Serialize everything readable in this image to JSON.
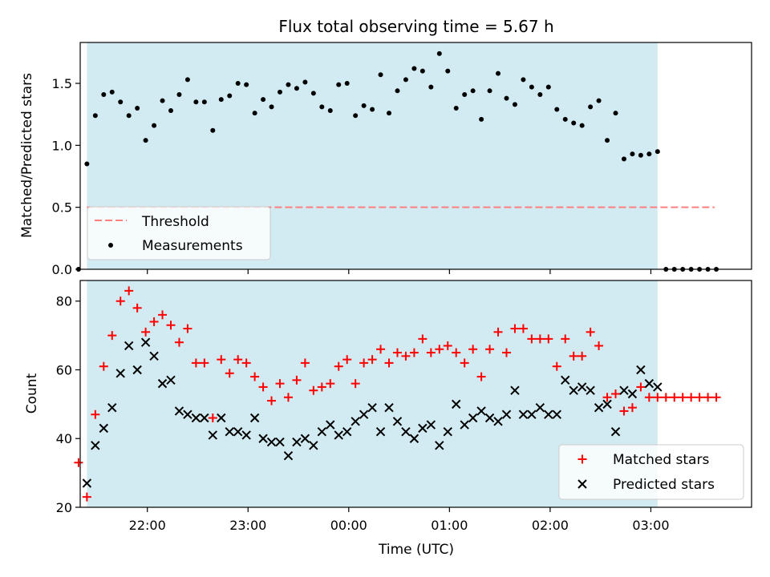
{
  "chart_data": [
    {
      "type": "scatter",
      "title": "Flux total observing time = 5.67 h",
      "xlabel": "",
      "ylabel": "Matched/Predicted stars",
      "xlim": [
        "21:20",
        "04:00"
      ],
      "ylim": [
        0,
        1.83
      ],
      "yticks": [
        0.0,
        0.5,
        1.0,
        1.5
      ],
      "ytick_labels": [
        "0.0",
        "0.5",
        "1.0",
        "1.5"
      ],
      "x_tick_labels_visible": false,
      "shaded_span": [
        "21:24",
        "03:04"
      ],
      "shaded_color": "#add8e6",
      "legend_position": "lower-left",
      "series": [
        {
          "name": "Threshold",
          "kind": "line",
          "style": "dashed",
          "color": "#ff7f7f",
          "x": [
            "21:24",
            "03:38"
          ],
          "y": [
            0.5,
            0.5
          ]
        },
        {
          "name": "Measurements",
          "kind": "scatter",
          "marker": "dot",
          "color": "#000000",
          "x": [
            "21:19",
            "21:24",
            "21:29",
            "21:34",
            "21:39",
            "21:44",
            "21:49",
            "21:54",
            "21:59",
            "22:04",
            "22:09",
            "22:14",
            "22:19",
            "22:24",
            "22:29",
            "22:34",
            "22:39",
            "22:44",
            "22:49",
            "22:54",
            "22:59",
            "23:04",
            "23:09",
            "23:14",
            "23:19",
            "23:24",
            "23:29",
            "23:34",
            "23:39",
            "23:44",
            "23:49",
            "23:54",
            "23:59",
            "00:04",
            "00:09",
            "00:14",
            "00:19",
            "00:24",
            "00:29",
            "00:34",
            "00:39",
            "00:44",
            "00:49",
            "00:54",
            "00:59",
            "01:04",
            "01:09",
            "01:14",
            "01:19",
            "01:24",
            "01:29",
            "01:34",
            "01:39",
            "01:44",
            "01:49",
            "01:54",
            "01:59",
            "02:04",
            "02:09",
            "02:14",
            "02:19",
            "02:24",
            "02:29",
            "02:34",
            "02:39",
            "02:44",
            "02:49",
            "02:54",
            "02:59",
            "03:04",
            "03:09",
            "03:14",
            "03:19",
            "03:24",
            "03:29",
            "03:34",
            "03:39"
          ],
          "y": [
            0.0,
            0.85,
            1.24,
            1.41,
            1.43,
            1.35,
            1.24,
            1.3,
            1.04,
            1.16,
            1.36,
            1.28,
            1.41,
            1.53,
            1.35,
            1.35,
            1.12,
            1.37,
            1.4,
            1.5,
            1.49,
            1.26,
            1.37,
            1.31,
            1.43,
            1.49,
            1.46,
            1.51,
            1.42,
            1.31,
            1.28,
            1.49,
            1.5,
            1.24,
            1.32,
            1.29,
            1.57,
            1.26,
            1.44,
            1.53,
            1.62,
            1.6,
            1.47,
            1.74,
            1.6,
            1.3,
            1.41,
            1.44,
            1.21,
            1.44,
            1.58,
            1.38,
            1.33,
            1.53,
            1.47,
            1.41,
            1.47,
            1.29,
            1.21,
            1.18,
            1.16,
            1.31,
            1.36,
            1.04,
            1.26,
            0.89,
            0.93,
            0.92,
            0.93,
            0.95,
            0.0,
            0.0,
            0.0,
            0.0,
            0.0,
            0.0,
            0.0
          ]
        }
      ]
    },
    {
      "type": "scatter",
      "title": "",
      "xlabel": "Time (UTC)",
      "ylabel": "Count",
      "xlim": [
        "21:20",
        "04:00"
      ],
      "ylim": [
        20,
        86
      ],
      "yticks": [
        20,
        40,
        60,
        80
      ],
      "ytick_labels": [
        "20",
        "40",
        "60",
        "80"
      ],
      "xticks": [
        "22:00",
        "23:00",
        "00:00",
        "01:00",
        "02:00",
        "03:00"
      ],
      "xtick_labels": [
        "22:00",
        "23:00",
        "00:00",
        "01:00",
        "02:00",
        "03:00"
      ],
      "shaded_span": [
        "21:24",
        "03:04"
      ],
      "shaded_color": "#add8e6",
      "legend_position": "lower-right",
      "series": [
        {
          "name": "Matched stars",
          "kind": "scatter",
          "marker": "plus",
          "color": "#ff0000",
          "x": [
            "21:19",
            "21:24",
            "21:29",
            "21:34",
            "21:39",
            "21:44",
            "21:49",
            "21:54",
            "21:59",
            "22:04",
            "22:09",
            "22:14",
            "22:19",
            "22:24",
            "22:29",
            "22:34",
            "22:39",
            "22:44",
            "22:49",
            "22:54",
            "22:59",
            "23:04",
            "23:09",
            "23:14",
            "23:19",
            "23:24",
            "23:29",
            "23:34",
            "23:39",
            "23:44",
            "23:49",
            "23:54",
            "23:59",
            "00:04",
            "00:09",
            "00:14",
            "00:19",
            "00:24",
            "00:29",
            "00:34",
            "00:39",
            "00:44",
            "00:49",
            "00:54",
            "00:59",
            "01:04",
            "01:09",
            "01:14",
            "01:19",
            "01:24",
            "01:29",
            "01:34",
            "01:39",
            "01:44",
            "01:49",
            "01:54",
            "01:59",
            "02:04",
            "02:09",
            "02:14",
            "02:19",
            "02:24",
            "02:29",
            "02:34",
            "02:39",
            "02:44",
            "02:49",
            "02:54",
            "02:59",
            "03:04",
            "03:09",
            "03:14",
            "03:19",
            "03:24",
            "03:29",
            "03:34",
            "03:39"
          ],
          "y": [
            33,
            23,
            47,
            61,
            70,
            80,
            83,
            78,
            71,
            74,
            76,
            73,
            68,
            72,
            62,
            62,
            46,
            63,
            59,
            63,
            62,
            58,
            55,
            51,
            56,
            52,
            57,
            62,
            54,
            55,
            56,
            61,
            63,
            56,
            62,
            63,
            66,
            62,
            65,
            64,
            65,
            69,
            65,
            66,
            67,
            65,
            62,
            66,
            58,
            66,
            71,
            65,
            72,
            72,
            69,
            69,
            69,
            61,
            69,
            64,
            64,
            71,
            67,
            52,
            53,
            48,
            49,
            55,
            52,
            52,
            52,
            52,
            52,
            52,
            52,
            52,
            52
          ]
        },
        {
          "name": "Predicted stars",
          "kind": "scatter",
          "marker": "x",
          "color": "#000000",
          "x": [
            "21:24",
            "21:29",
            "21:34",
            "21:39",
            "21:44",
            "21:49",
            "21:54",
            "21:59",
            "22:04",
            "22:09",
            "22:14",
            "22:19",
            "22:24",
            "22:29",
            "22:34",
            "22:39",
            "22:44",
            "22:49",
            "22:54",
            "22:59",
            "23:04",
            "23:09",
            "23:14",
            "23:19",
            "23:24",
            "23:29",
            "23:34",
            "23:39",
            "23:44",
            "23:49",
            "23:54",
            "23:59",
            "00:04",
            "00:09",
            "00:14",
            "00:19",
            "00:24",
            "00:29",
            "00:34",
            "00:39",
            "00:44",
            "00:49",
            "00:54",
            "00:59",
            "01:04",
            "01:09",
            "01:14",
            "01:19",
            "01:24",
            "01:29",
            "01:34",
            "01:39",
            "01:44",
            "01:49",
            "01:54",
            "01:59",
            "02:04",
            "02:09",
            "02:14",
            "02:19",
            "02:24",
            "02:29",
            "02:34",
            "02:39",
            "02:44",
            "02:49",
            "02:54",
            "02:59",
            "03:04"
          ],
          "y": [
            27,
            38,
            43,
            49,
            59,
            67,
            60,
            68,
            64,
            56,
            57,
            48,
            47,
            46,
            46,
            41,
            46,
            42,
            42,
            41,
            46,
            40,
            39,
            39,
            35,
            39,
            40,
            38,
            42,
            44,
            41,
            42,
            45,
            47,
            49,
            42,
            49,
            45,
            42,
            40,
            43,
            44,
            38,
            42,
            50,
            44,
            46,
            48,
            46,
            45,
            47,
            54,
            47,
            47,
            49,
            47,
            47,
            57,
            54,
            55,
            54,
            49,
            50,
            42,
            54,
            53,
            60,
            56,
            55
          ]
        }
      ]
    }
  ]
}
